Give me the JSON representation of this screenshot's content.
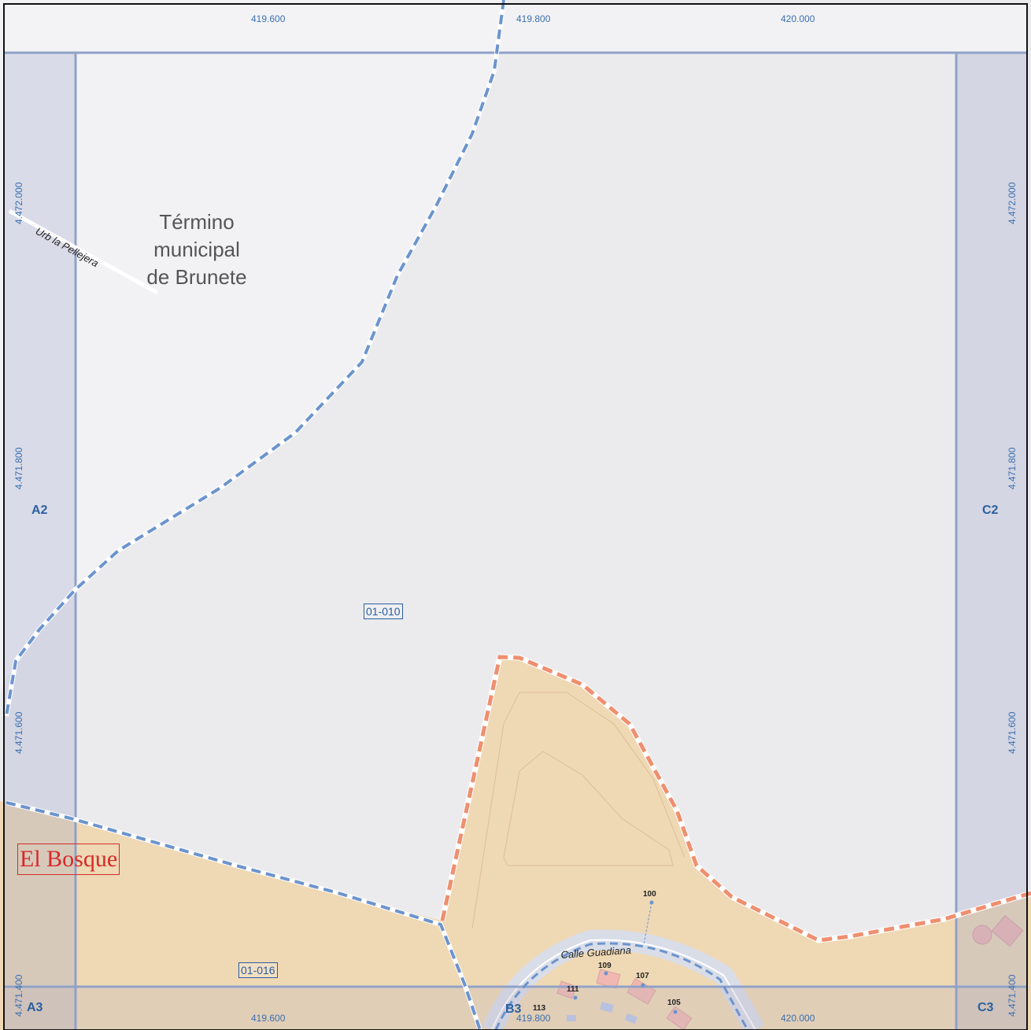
{
  "map": {
    "municipality": [
      "Término",
      "municipal",
      "de Brunete"
    ],
    "town": "El Bosque",
    "streets": {
      "urb": "Urb la Pellejera",
      "calle": "Calle Guadiana"
    },
    "parcels": {
      "north": "01-010",
      "south": "01-016"
    },
    "grid_cells": {
      "a2": "A2",
      "c2": "C2",
      "a3": "A3",
      "b3": "B3",
      "c3": "C3"
    },
    "coords": {
      "top": [
        "419.600",
        "419.800",
        "420.000"
      ],
      "bottom": [
        "419.600",
        "419.800",
        "420.000"
      ],
      "left": [
        "4.472.000",
        "4.471.800",
        "4.471.600",
        "4.471.400"
      ],
      "right": [
        "4.472.000",
        "4.471.800",
        "4.471.600",
        "4.471.400"
      ]
    },
    "address_numbers": [
      "100",
      "109",
      "107",
      "111",
      "113",
      "105"
    ],
    "colors": {
      "background": "#ebebee",
      "urban_fill": "#efd8b4",
      "grid_line": "#8fa2c8",
      "margin_fill": "#d7dae8",
      "boundary_blue": "#6c94cd",
      "boundary_orange": "#ee8f6f",
      "label_blue": "#2a5fa0",
      "town_red": "#d42a2a"
    }
  }
}
